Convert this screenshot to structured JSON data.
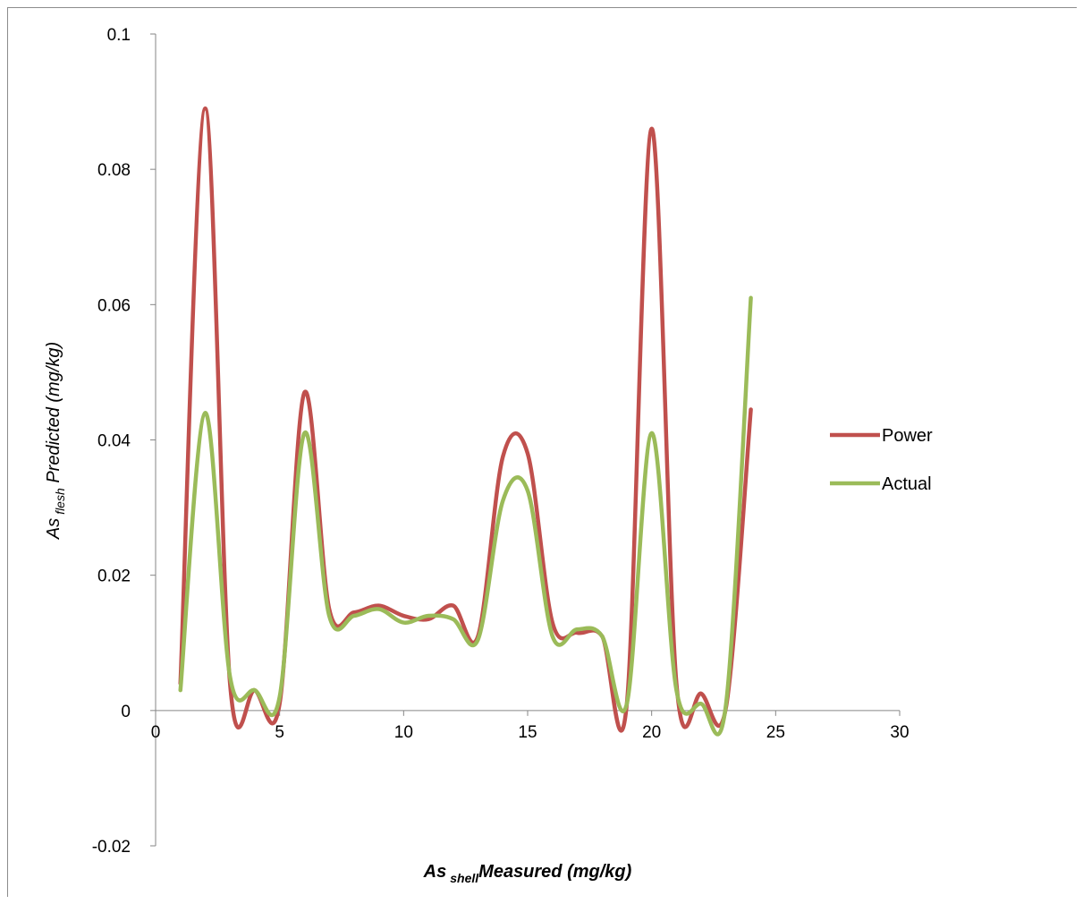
{
  "chart_data": {
    "type": "line",
    "smooth": true,
    "xlabel": {
      "main": "As",
      "subscript": "shell",
      "rest": "Measured (mg/kg)"
    },
    "ylabel": {
      "main": "As",
      "subscript": "flesh",
      "rest": " Predicted (mg/kg)"
    },
    "xlim": [
      0,
      30
    ],
    "ylim": [
      -0.02,
      0.1
    ],
    "x_ticks": [
      0,
      5,
      10,
      15,
      20,
      25,
      30
    ],
    "y_ticks": [
      -0.02,
      0,
      0.02,
      0.04,
      0.06,
      0.08,
      0.1
    ],
    "x_tick_labels": [
      "0",
      "5",
      "10",
      "15",
      "20",
      "25",
      "30"
    ],
    "y_tick_labels": [
      "-0.02",
      "0",
      "0.02",
      "0.04",
      "0.06",
      "0.08",
      "0.1"
    ],
    "grid": false,
    "legend_position": "right",
    "x": [
      1,
      2,
      3,
      4,
      5,
      6,
      7,
      8,
      9,
      10,
      11,
      12,
      13,
      14,
      15,
      16,
      17,
      18,
      19,
      20,
      21,
      22,
      23,
      24
    ],
    "series": [
      {
        "name": "Power",
        "color": "#c0504d",
        "values": [
          0.004,
          0.089,
          0.004,
          0.003,
          0.001,
          0.047,
          0.015,
          0.0145,
          0.0155,
          0.014,
          0.0135,
          0.0155,
          0.011,
          0.0375,
          0.038,
          0.013,
          0.0115,
          0.011,
          0.001,
          0.086,
          0.004,
          0.0025,
          0.0005,
          0.0445
        ]
      },
      {
        "name": "Actual",
        "color": "#9bbb59",
        "values": [
          0.003,
          0.044,
          0.005,
          0.003,
          0.002,
          0.041,
          0.014,
          0.014,
          0.015,
          0.013,
          0.014,
          0.0135,
          0.0105,
          0.031,
          0.0325,
          0.011,
          0.012,
          0.011,
          0.001,
          0.041,
          0.003,
          0.001,
          0.001,
          0.061
        ]
      }
    ]
  }
}
